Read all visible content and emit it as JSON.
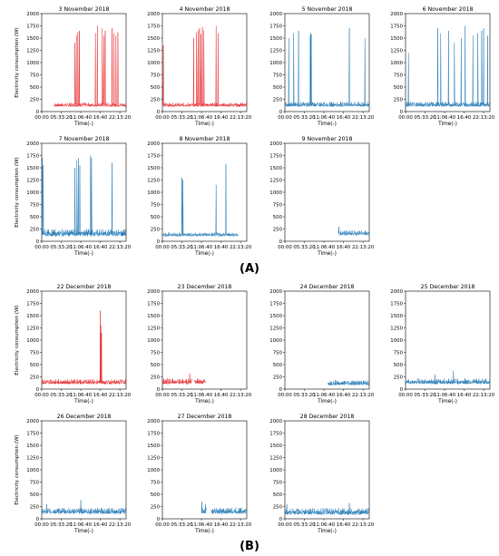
{
  "figure": {
    "group_a_label": "(A)",
    "group_b_label": "(B)",
    "colors": {
      "red": "#e8262a",
      "blue": "#1f77b4",
      "axis": "#000000",
      "light_blue": "#6aa6d6"
    }
  },
  "chart_data": [
    {
      "type": "line",
      "group": "A",
      "title": "3 November 2018",
      "ylabel": "Electricity consumption (W)",
      "xlabel": "Time(-)",
      "x_ticks": [
        "00:00",
        "05:33:20",
        "11:06:40",
        "16:40",
        "22:13:20"
      ],
      "y_ticks": [
        0,
        250,
        500,
        750,
        1000,
        1250,
        1500,
        1750,
        2000
      ],
      "xlim": [
        0,
        86400
      ],
      "ylim": [
        0,
        2000
      ],
      "series": [
        {
          "color": "red",
          "segments": [
            {
              "start": 12600,
              "end": 86400
            }
          ],
          "base_level": [
            100,
            180
          ],
          "spikes": [
            {
              "x": 34000,
              "y": 1400
            },
            {
              "x": 35500,
              "y": 1550
            },
            {
              "x": 37000,
              "y": 1620
            },
            {
              "x": 38500,
              "y": 1650
            },
            {
              "x": 55000,
              "y": 1600
            },
            {
              "x": 57000,
              "y": 1750
            },
            {
              "x": 62000,
              "y": 1700
            },
            {
              "x": 63500,
              "y": 1550
            },
            {
              "x": 65000,
              "y": 1650
            },
            {
              "x": 72000,
              "y": 1700
            },
            {
              "x": 74000,
              "y": 1600
            },
            {
              "x": 76000,
              "y": 1550
            },
            {
              "x": 78000,
              "y": 1620
            }
          ]
        }
      ]
    },
    {
      "type": "line",
      "group": "A",
      "title": "4 November 2018",
      "ylabel": "",
      "xlabel": "Time(-)",
      "x_ticks": [
        "00:00",
        "05:33:20",
        "11:06:40",
        "16:40",
        "22:13:20"
      ],
      "y_ticks": [
        0,
        250,
        500,
        750,
        1000,
        1250,
        1500,
        1750,
        2000
      ],
      "xlim": [
        0,
        86400
      ],
      "ylim": [
        0,
        2000
      ],
      "series": [
        {
          "color": "red",
          "segments": [
            {
              "start": 800,
              "end": 86400
            }
          ],
          "base_level": [
            100,
            180
          ],
          "spikes": [
            {
              "x": 1000,
              "y": 1350
            },
            {
              "x": 32000,
              "y": 1500
            },
            {
              "x": 35000,
              "y": 1620
            },
            {
              "x": 36500,
              "y": 1660
            },
            {
              "x": 38000,
              "y": 1700
            },
            {
              "x": 39500,
              "y": 1580
            },
            {
              "x": 41000,
              "y": 1720
            },
            {
              "x": 42500,
              "y": 1650
            },
            {
              "x": 55000,
              "y": 1750
            },
            {
              "x": 57000,
              "y": 1600
            }
          ]
        }
      ]
    },
    {
      "type": "line",
      "group": "A",
      "title": "5 November 2018",
      "ylabel": "",
      "xlabel": "Time(-)",
      "x_ticks": [
        "00:00",
        "05:33:20",
        "11:06:40",
        "16:40",
        "22:13:20"
      ],
      "y_ticks": [
        0,
        250,
        500,
        750,
        1000,
        1250,
        1500,
        1750,
        2000
      ],
      "xlim": [
        0,
        86400
      ],
      "ylim": [
        0,
        2000
      ],
      "series": [
        {
          "color": "blue",
          "segments": [
            {
              "start": 0,
              "end": 86400
            }
          ],
          "base_level": [
            100,
            200
          ],
          "spikes": [
            {
              "x": 4000,
              "y": 1500
            },
            {
              "x": 9000,
              "y": 1600
            },
            {
              "x": 14000,
              "y": 1650
            },
            {
              "x": 26000,
              "y": 1550
            },
            {
              "x": 26500,
              "y": 1600
            },
            {
              "x": 27000,
              "y": 1580
            },
            {
              "x": 66000,
              "y": 1700
            },
            {
              "x": 82000,
              "y": 1500
            }
          ]
        }
      ]
    },
    {
      "type": "line",
      "group": "A",
      "title": "6 November 2018",
      "ylabel": "",
      "xlabel": "Time(-)",
      "x_ticks": [
        "00:00",
        "05:33:20",
        "11:06:40",
        "16:40",
        "22:13:20"
      ],
      "y_ticks": [
        0,
        250,
        500,
        750,
        1000,
        1250,
        1500,
        1750,
        2000
      ],
      "xlim": [
        0,
        86400
      ],
      "ylim": [
        0,
        2000
      ],
      "series": [
        {
          "color": "blue",
          "segments": [
            {
              "start": 0,
              "end": 86400
            }
          ],
          "base_level": [
            100,
            200
          ],
          "spikes": [
            {
              "x": 3000,
              "y": 1200
            },
            {
              "x": 33000,
              "y": 1700
            },
            {
              "x": 36000,
              "y": 1600
            },
            {
              "x": 44000,
              "y": 1650
            },
            {
              "x": 50000,
              "y": 1400
            },
            {
              "x": 57000,
              "y": 1500
            },
            {
              "x": 61000,
              "y": 1750
            },
            {
              "x": 69000,
              "y": 1550
            },
            {
              "x": 74000,
              "y": 1600
            },
            {
              "x": 78000,
              "y": 1650
            },
            {
              "x": 80000,
              "y": 1700
            },
            {
              "x": 84000,
              "y": 1550
            }
          ]
        }
      ]
    },
    {
      "type": "line",
      "group": "A",
      "title": "7 November 2018",
      "ylabel": "Electricity consumption (W)",
      "xlabel": "Time(-)",
      "x_ticks": [
        "00:00",
        "05:33:20",
        "11:06:40",
        "16:40",
        "22:13:20"
      ],
      "y_ticks": [
        0,
        250,
        500,
        750,
        1000,
        1250,
        1500,
        1750,
        2000
      ],
      "xlim": [
        0,
        86400
      ],
      "ylim": [
        0,
        2000
      ],
      "series": [
        {
          "color": "blue",
          "segments": [
            {
              "start": 0,
              "end": 86400
            }
          ],
          "base_level": [
            100,
            250
          ],
          "spikes": [
            {
              "x": 600,
              "y": 1700
            },
            {
              "x": 1500,
              "y": 1550
            },
            {
              "x": 34000,
              "y": 1500
            },
            {
              "x": 36000,
              "y": 1650
            },
            {
              "x": 37500,
              "y": 1700
            },
            {
              "x": 39000,
              "y": 1550
            },
            {
              "x": 50000,
              "y": 1750
            },
            {
              "x": 51000,
              "y": 1700
            },
            {
              "x": 72000,
              "y": 1600
            }
          ]
        }
      ]
    },
    {
      "type": "line",
      "group": "A",
      "title": "8 November 2018",
      "ylabel": "",
      "xlabel": "Time(-)",
      "x_ticks": [
        "00:00",
        "05:33:20",
        "11:06:40",
        "16:40",
        "22:13:20"
      ],
      "y_ticks": [
        0,
        250,
        500,
        750,
        1000,
        1250,
        1500,
        1750,
        2000
      ],
      "xlim": [
        0,
        86400
      ],
      "ylim": [
        0,
        2000
      ],
      "series": [
        {
          "color": "blue",
          "segments": [
            {
              "start": 0,
              "end": 78000
            }
          ],
          "base_level": [
            100,
            180
          ],
          "spikes": [
            {
              "x": 20000,
              "y": 1300
            },
            {
              "x": 21000,
              "y": 1250
            },
            {
              "x": 55000,
              "y": 1150
            },
            {
              "x": 65000,
              "y": 1580
            }
          ]
        }
      ]
    },
    {
      "type": "line",
      "group": "A",
      "title": "9 November 2018",
      "ylabel": "",
      "xlabel": "Time(-)",
      "x_ticks": [
        "00:00",
        "05:33:20",
        "11:06:40",
        "16:40",
        "22:13:20"
      ],
      "y_ticks": [
        0,
        250,
        500,
        750,
        1000,
        1250,
        1500,
        1750,
        2000
      ],
      "xlim": [
        0,
        86400
      ],
      "ylim": [
        0,
        2000
      ],
      "series": [
        {
          "color": "blue",
          "segments": [
            {
              "start": 55000,
              "end": 86400
            }
          ],
          "base_level": [
            120,
            220
          ],
          "spikes": [
            {
              "x": 55200,
              "y": 300
            }
          ]
        }
      ]
    },
    {
      "type": "line",
      "group": "B",
      "title": "22 December 2018",
      "ylabel": "Electricity consumption (W)",
      "xlabel": "Time(-)",
      "x_ticks": [
        "00:00",
        "05:33:20",
        "11:06:40",
        "16:40",
        "22:13:20"
      ],
      "y_ticks": [
        0,
        250,
        500,
        750,
        1000,
        1250,
        1500,
        1750,
        2000
      ],
      "xlim": [
        0,
        86400
      ],
      "ylim": [
        0,
        2000
      ],
      "series": [
        {
          "color": "red",
          "segments": [
            {
              "start": 0,
              "end": 86400
            }
          ],
          "base_level": [
            100,
            200
          ],
          "spikes": [
            {
              "x": 60000,
              "y": 1600
            },
            {
              "x": 60600,
              "y": 1300
            },
            {
              "x": 61200,
              "y": 1150
            }
          ]
        }
      ]
    },
    {
      "type": "line",
      "group": "B",
      "title": "23 December 2018",
      "ylabel": "",
      "xlabel": "Time(-)",
      "x_ticks": [
        "00:00",
        "05:33:20",
        "11:06:40",
        "16:40",
        "22:13:20"
      ],
      "y_ticks": [
        0,
        250,
        500,
        750,
        1000,
        1250,
        1500,
        1750,
        2000
      ],
      "xlim": [
        0,
        86400
      ],
      "ylim": [
        0,
        2000
      ],
      "series": [
        {
          "color": "red",
          "segments": [
            {
              "start": 0,
              "end": 30000
            },
            {
              "start": 33000,
              "end": 44000
            }
          ],
          "base_level": [
            100,
            220
          ],
          "spikes": [
            {
              "x": 28000,
              "y": 320
            }
          ]
        }
      ]
    },
    {
      "type": "line",
      "group": "B",
      "title": "24 December 2018",
      "ylabel": "",
      "xlabel": "Time(-)",
      "x_ticks": [
        "00:00",
        "05:33:20",
        "11:06:40",
        "16:40",
        "22:13:20"
      ],
      "y_ticks": [
        0,
        250,
        500,
        750,
        1000,
        1250,
        1500,
        1750,
        2000
      ],
      "xlim": [
        0,
        86400
      ],
      "ylim": [
        0,
        2000
      ],
      "series": [
        {
          "color": "blue",
          "segments": [
            {
              "start": 44000,
              "end": 86400
            }
          ],
          "base_level": [
            80,
            180
          ],
          "spikes": []
        }
      ]
    },
    {
      "type": "line",
      "group": "B",
      "title": "25 December 2018",
      "ylabel": "",
      "xlabel": "Time(-)",
      "x_ticks": [
        "00:00",
        "05:33:20",
        "11:06:40",
        "16:40",
        "22:13:20"
      ],
      "y_ticks": [
        0,
        250,
        500,
        750,
        1000,
        1250,
        1500,
        1750,
        2000
      ],
      "xlim": [
        0,
        86400
      ],
      "ylim": [
        0,
        2000
      ],
      "series": [
        {
          "color": "blue",
          "segments": [
            {
              "start": 0,
              "end": 86400
            }
          ],
          "base_level": [
            100,
            220
          ],
          "spikes": [
            {
              "x": 49000,
              "y": 380
            },
            {
              "x": 30000,
              "y": 300
            }
          ]
        }
      ]
    },
    {
      "type": "line",
      "group": "B",
      "title": "26 December 2018",
      "ylabel": "Electricity consumption (W)",
      "xlabel": "Time(-)",
      "x_ticks": [
        "00:00",
        "05:33:20",
        "11:06:40",
        "16:40",
        "22:13:20"
      ],
      "y_ticks": [
        0,
        250,
        500,
        750,
        1000,
        1250,
        1500,
        1750,
        2000
      ],
      "xlim": [
        0,
        86400
      ],
      "ylim": [
        0,
        2000
      ],
      "series": [
        {
          "color": "blue",
          "segments": [
            {
              "start": 0,
              "end": 86400
            }
          ],
          "base_level": [
            100,
            220
          ],
          "spikes": [
            {
              "x": 40000,
              "y": 380
            },
            {
              "x": 5000,
              "y": 300
            }
          ]
        }
      ]
    },
    {
      "type": "line",
      "group": "B",
      "title": "27 December 2018",
      "ylabel": "",
      "xlabel": "Time(-)",
      "x_ticks": [
        "00:00",
        "05:33:20",
        "11:06:40",
        "16:40",
        "22:13:20"
      ],
      "y_ticks": [
        0,
        250,
        500,
        750,
        1000,
        1250,
        1500,
        1750,
        2000
      ],
      "xlim": [
        0,
        86400
      ],
      "ylim": [
        0,
        2000
      ],
      "series": [
        {
          "color": "blue",
          "segments": [
            {
              "start": 40000,
              "end": 45000
            },
            {
              "start": 50000,
              "end": 86400
            }
          ],
          "base_level": [
            100,
            230
          ],
          "spikes": [
            {
              "x": 40500,
              "y": 350
            },
            {
              "x": 44000,
              "y": 300
            }
          ]
        }
      ]
    },
    {
      "type": "line",
      "group": "B",
      "title": "28 December 2018",
      "ylabel": "",
      "xlabel": "Time(-)",
      "x_ticks": [
        "00:00",
        "05:33:20",
        "11:06:40",
        "16:40",
        "22:13:20"
      ],
      "y_ticks": [
        0,
        250,
        500,
        750,
        1000,
        1250,
        1500,
        1750,
        2000
      ],
      "xlim": [
        0,
        86400
      ],
      "ylim": [
        0,
        2000
      ],
      "series": [
        {
          "color": "blue",
          "segments": [
            {
              "start": 0,
              "end": 86400
            }
          ],
          "base_level": [
            80,
            220
          ],
          "spikes": [
            {
              "x": 2000,
              "y": 300
            },
            {
              "x": 66000,
              "y": 320
            }
          ]
        }
      ]
    }
  ]
}
